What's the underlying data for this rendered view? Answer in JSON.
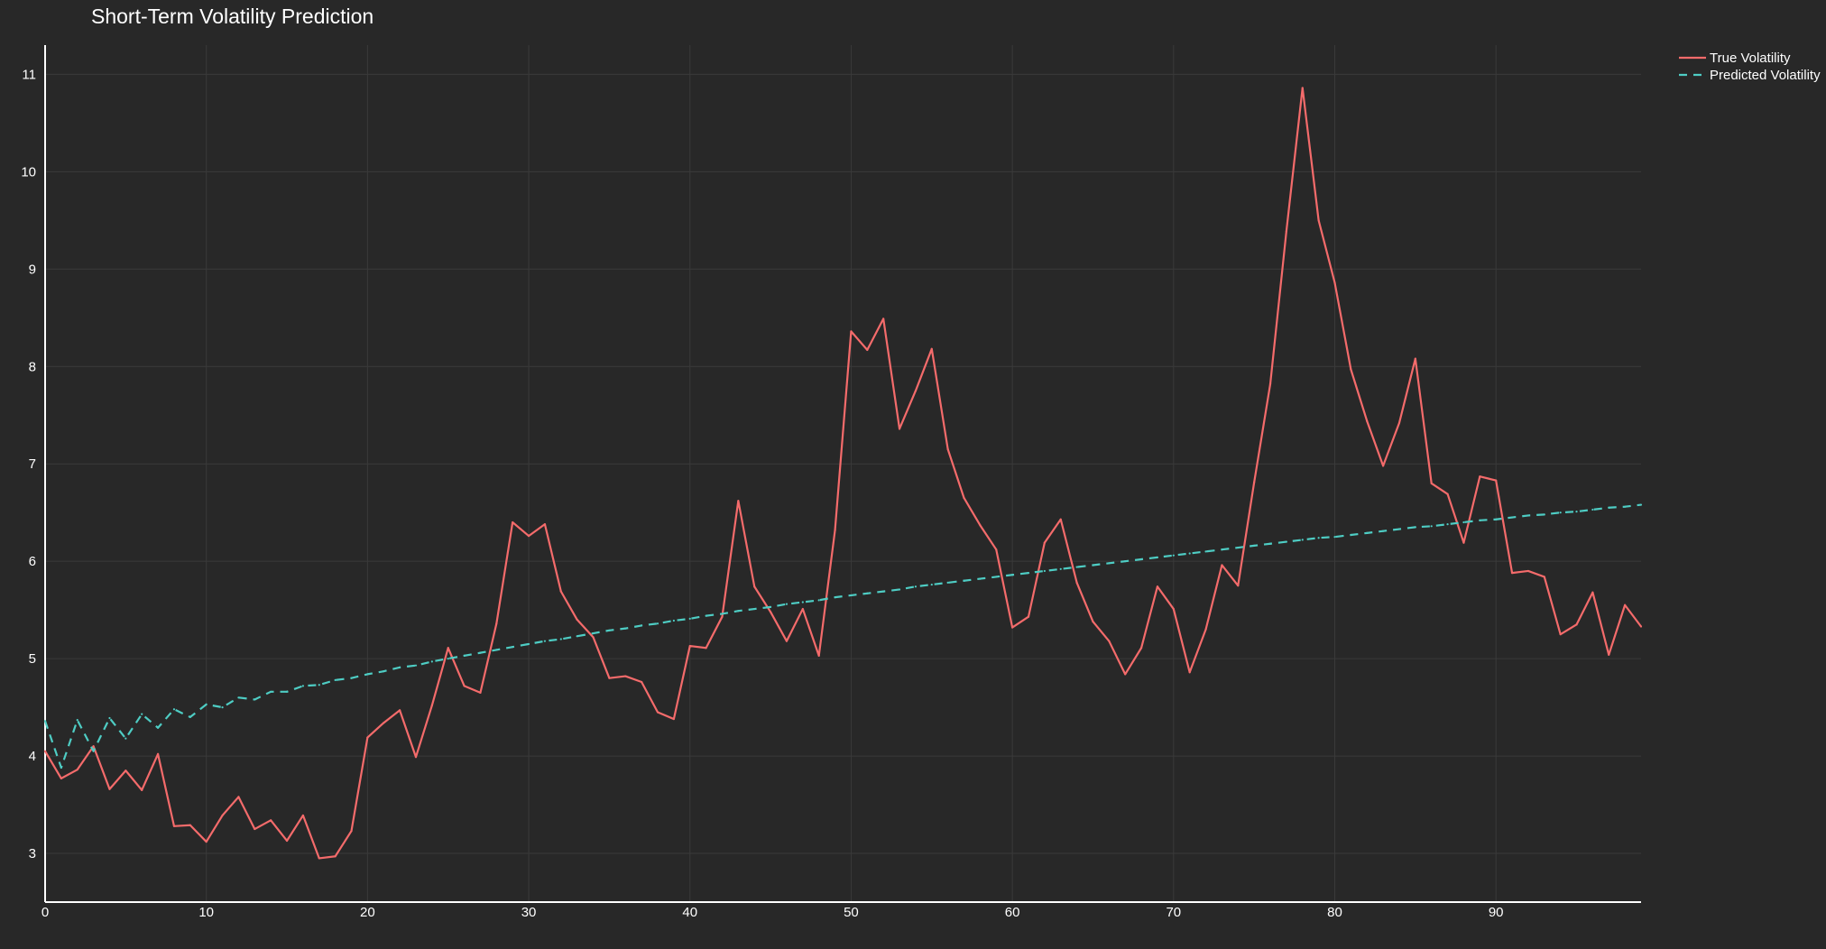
{
  "chart_data": {
    "type": "line",
    "title": "Short-Term Volatility Prediction",
    "xlabel": "",
    "ylabel": "",
    "xlim": [
      0,
      99
    ],
    "ylim": [
      2.5,
      11.3
    ],
    "x_ticks": [
      0,
      10,
      20,
      30,
      40,
      50,
      60,
      70,
      80,
      90
    ],
    "y_ticks": [
      3,
      4,
      5,
      6,
      7,
      8,
      9,
      10,
      11
    ],
    "grid": true,
    "legend_position": "top-right",
    "background_color": "#282828",
    "series": [
      {
        "name": "True Volatility",
        "color": "#F46B6B",
        "dash": "solid",
        "x": [
          0,
          1,
          2,
          3,
          4,
          5,
          6,
          7,
          8,
          9,
          10,
          11,
          12,
          13,
          14,
          15,
          16,
          17,
          18,
          19,
          20,
          21,
          22,
          23,
          24,
          25,
          26,
          27,
          28,
          29,
          30,
          31,
          32,
          33,
          34,
          35,
          36,
          37,
          38,
          39,
          40,
          41,
          42,
          43,
          44,
          45,
          46,
          47,
          48,
          49,
          50,
          51,
          52,
          53,
          54,
          55,
          56,
          57,
          58,
          59,
          60,
          61,
          62,
          63,
          64,
          65,
          66,
          67,
          68,
          69,
          70,
          71,
          72,
          73,
          74,
          75,
          76,
          77,
          78,
          79,
          80,
          81,
          82,
          83,
          84,
          85,
          86,
          87,
          88,
          89,
          90,
          91,
          92,
          93,
          94,
          95,
          96,
          97,
          98,
          99
        ],
        "values": [
          4.05,
          3.77,
          3.86,
          4.1,
          3.66,
          3.85,
          3.65,
          4.02,
          3.28,
          3.29,
          3.12,
          3.39,
          3.58,
          3.25,
          3.34,
          3.13,
          3.39,
          2.95,
          2.97,
          3.23,
          4.19,
          4.34,
          4.47,
          3.99,
          4.52,
          5.11,
          4.72,
          4.65,
          5.36,
          6.4,
          6.26,
          6.38,
          5.69,
          5.4,
          5.22,
          4.8,
          4.82,
          4.76,
          4.45,
          4.38,
          5.13,
          5.11,
          5.43,
          6.62,
          5.74,
          5.48,
          5.18,
          5.51,
          5.03,
          6.32,
          8.36,
          8.17,
          8.49,
          7.36,
          7.75,
          8.18,
          7.15,
          6.65,
          6.37,
          6.12,
          5.32,
          5.43,
          6.19,
          6.43,
          5.78,
          5.38,
          5.18,
          4.84,
          5.11,
          5.74,
          5.51,
          4.86,
          5.3,
          5.96,
          5.75,
          6.81,
          7.82,
          9.39,
          10.86,
          9.5,
          8.86,
          7.97,
          7.44,
          6.98,
          7.42,
          8.08,
          6.8,
          6.69,
          6.19,
          6.87,
          6.83,
          5.88,
          5.9,
          5.84,
          5.25,
          5.35,
          5.68,
          5.04,
          5.55,
          5.33
        ]
      },
      {
        "name": "Predicted Volatility",
        "color": "#4ECDC4",
        "dash": "dashed",
        "x": [
          0,
          1,
          2,
          3,
          4,
          5,
          6,
          7,
          8,
          9,
          10,
          11,
          12,
          13,
          14,
          15,
          16,
          17,
          18,
          19,
          20,
          21,
          22,
          23,
          24,
          25,
          26,
          27,
          28,
          29,
          30,
          31,
          32,
          33,
          34,
          35,
          36,
          37,
          38,
          39,
          40,
          41,
          42,
          43,
          44,
          45,
          46,
          47,
          48,
          49,
          50,
          51,
          52,
          53,
          54,
          55,
          56,
          57,
          58,
          59,
          60,
          61,
          62,
          63,
          64,
          65,
          66,
          67,
          68,
          69,
          70,
          71,
          72,
          73,
          74,
          75,
          76,
          77,
          78,
          79,
          80,
          81,
          82,
          83,
          84,
          85,
          86,
          87,
          88,
          89,
          90,
          91,
          92,
          93,
          94,
          95,
          96,
          97,
          98,
          99
        ],
        "values": [
          4.36,
          3.88,
          4.37,
          4.05,
          4.39,
          4.18,
          4.43,
          4.29,
          4.48,
          4.4,
          4.53,
          4.5,
          4.6,
          4.58,
          4.66,
          4.66,
          4.72,
          4.73,
          4.78,
          4.8,
          4.84,
          4.87,
          4.91,
          4.93,
          4.97,
          5.0,
          5.03,
          5.06,
          5.09,
          5.12,
          5.15,
          5.18,
          5.2,
          5.23,
          5.26,
          5.29,
          5.31,
          5.34,
          5.36,
          5.39,
          5.41,
          5.44,
          5.46,
          5.49,
          5.51,
          5.53,
          5.56,
          5.58,
          5.6,
          5.63,
          5.65,
          5.67,
          5.69,
          5.71,
          5.74,
          5.76,
          5.78,
          5.8,
          5.82,
          5.84,
          5.86,
          5.88,
          5.9,
          5.92,
          5.94,
          5.96,
          5.98,
          6.0,
          6.02,
          6.04,
          6.06,
          6.08,
          6.1,
          6.12,
          6.14,
          6.16,
          6.18,
          6.2,
          6.22,
          6.24,
          6.25,
          6.27,
          6.29,
          6.31,
          6.33,
          6.35,
          6.36,
          6.38,
          6.4,
          6.42,
          6.43,
          6.45,
          6.47,
          6.48,
          6.5,
          6.51,
          6.53,
          6.55,
          6.56,
          6.58
        ]
      }
    ]
  }
}
